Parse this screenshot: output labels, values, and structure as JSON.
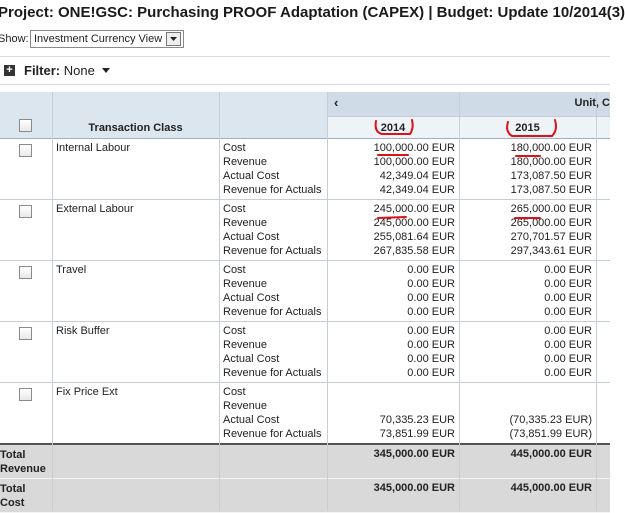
{
  "header": {
    "title": "Project: ONE!GSC: Purchasing PROOF Adaptation (CAPEX) | Budget: Update 10/2014(3)",
    "show_label": "Show:",
    "view_select": "Investment Currency View",
    "filter_label": "Filter:",
    "filter_value": "None"
  },
  "table": {
    "group_header": "Unit, C",
    "columns": [
      "Transaction Class",
      "2014",
      "2015"
    ],
    "rows": [
      {
        "name": "Internal Labour",
        "measures": [
          {
            "label": "Cost",
            "values": [
              "100,000.00 EUR",
              "180,000.00 EUR"
            ]
          },
          {
            "label": "Revenue",
            "values": [
              "100,000.00 EUR",
              "180,000.00 EUR"
            ]
          },
          {
            "label": "Actual Cost",
            "values": [
              "42,349.04 EUR",
              "173,087.50 EUR"
            ]
          },
          {
            "label": "Revenue for Actuals",
            "values": [
              "42,349.04 EUR",
              "173,087.50 EUR"
            ]
          }
        ]
      },
      {
        "name": "External Labour",
        "measures": [
          {
            "label": "Cost",
            "values": [
              "245,000.00 EUR",
              "265,000.00 EUR"
            ]
          },
          {
            "label": "Revenue",
            "values": [
              "245,000.00 EUR",
              "265,000.00 EUR"
            ]
          },
          {
            "label": "Actual Cost",
            "values": [
              "255,081.64 EUR",
              "270,701.57 EUR"
            ]
          },
          {
            "label": "Revenue for Actuals",
            "values": [
              "267,835.58 EUR",
              "297,343.61 EUR"
            ]
          }
        ]
      },
      {
        "name": "Travel",
        "measures": [
          {
            "label": "Cost",
            "values": [
              "0.00 EUR",
              "0.00 EUR"
            ]
          },
          {
            "label": "Revenue",
            "values": [
              "0.00 EUR",
              "0.00 EUR"
            ]
          },
          {
            "label": "Actual Cost",
            "values": [
              "0.00 EUR",
              "0.00 EUR"
            ]
          },
          {
            "label": "Revenue for Actuals",
            "values": [
              "0.00 EUR",
              "0.00 EUR"
            ]
          }
        ]
      },
      {
        "name": "Risk Buffer",
        "measures": [
          {
            "label": "Cost",
            "values": [
              "0.00 EUR",
              "0.00 EUR"
            ]
          },
          {
            "label": "Revenue",
            "values": [
              "0.00 EUR",
              "0.00 EUR"
            ]
          },
          {
            "label": "Actual Cost",
            "values": [
              "0.00 EUR",
              "0.00 EUR"
            ]
          },
          {
            "label": "Revenue for Actuals",
            "values": [
              "0.00 EUR",
              "0.00 EUR"
            ]
          }
        ]
      },
      {
        "name": "Fix Price Ext",
        "measures": [
          {
            "label": "Cost",
            "values": [
              null,
              null
            ]
          },
          {
            "label": "Revenue",
            "values": [
              null,
              null
            ]
          },
          {
            "label": "Actual Cost",
            "values": [
              "70,335.23 EUR",
              "(70,335.23 EUR)"
            ]
          },
          {
            "label": "Revenue for Actuals",
            "values": [
              "73,851.99 EUR",
              "(73,851.99 EUR)"
            ]
          }
        ]
      }
    ],
    "totals": [
      {
        "label": "Total Revenue",
        "values": [
          "345,000.00 EUR",
          "445,000.00 EUR"
        ]
      },
      {
        "label": "Total Cost",
        "values": [
          "345,000.00 EUR",
          "445,000.00 EUR"
        ]
      }
    ]
  }
}
